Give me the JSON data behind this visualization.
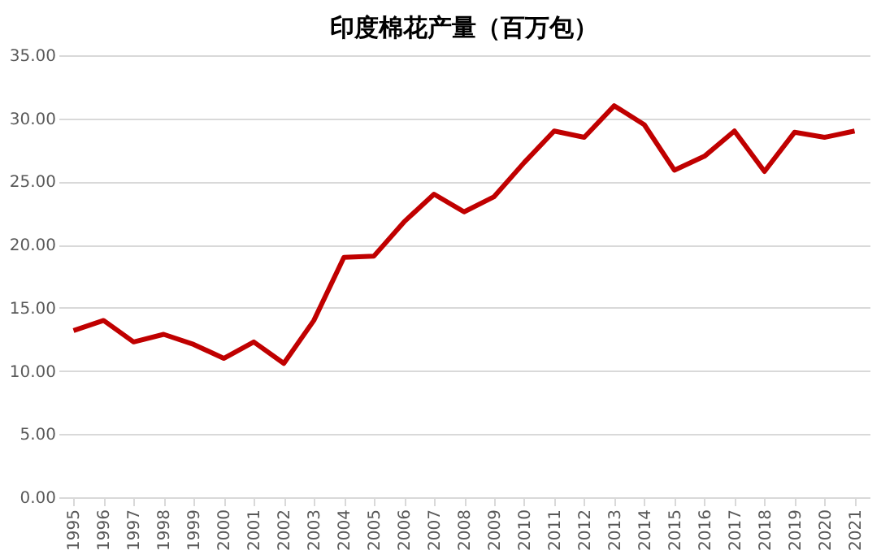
{
  "chart_data": {
    "type": "line",
    "title": "印度棉花产量（百万包）",
    "categories": [
      "1995",
      "1996",
      "1997",
      "1998",
      "1999",
      "2000",
      "2001",
      "2002",
      "2003",
      "2004",
      "2005",
      "2006",
      "2007",
      "2008",
      "2009",
      "2010",
      "2011",
      "2012",
      "2013",
      "2014",
      "2015",
      "2016",
      "2017",
      "2018",
      "2019",
      "2020",
      "2021"
    ],
    "series": [
      {
        "color": "#c00000",
        "values": [
          13.2,
          14.0,
          12.3,
          12.9,
          12.1,
          11.0,
          12.3,
          10.6,
          14.0,
          19.0,
          19.1,
          21.8,
          24.0,
          22.6,
          23.8,
          26.5,
          29.0,
          28.5,
          31.0,
          29.5,
          25.9,
          27.0,
          29.0,
          25.8,
          28.9,
          28.5,
          29.0
        ]
      }
    ],
    "ylim": [
      0,
      35
    ],
    "yticks": [
      {
        "value": 0,
        "label": "0.00"
      },
      {
        "value": 5,
        "label": "5.00"
      },
      {
        "value": 10,
        "label": "10.00"
      },
      {
        "value": 15,
        "label": "15.00"
      },
      {
        "value": 20,
        "label": "20.00"
      },
      {
        "value": 25,
        "label": "25.00"
      },
      {
        "value": 30,
        "label": "30.00"
      },
      {
        "value": 35,
        "label": "35.00"
      }
    ],
    "grid": "y",
    "marker": "none",
    "line_style": "solid"
  }
}
